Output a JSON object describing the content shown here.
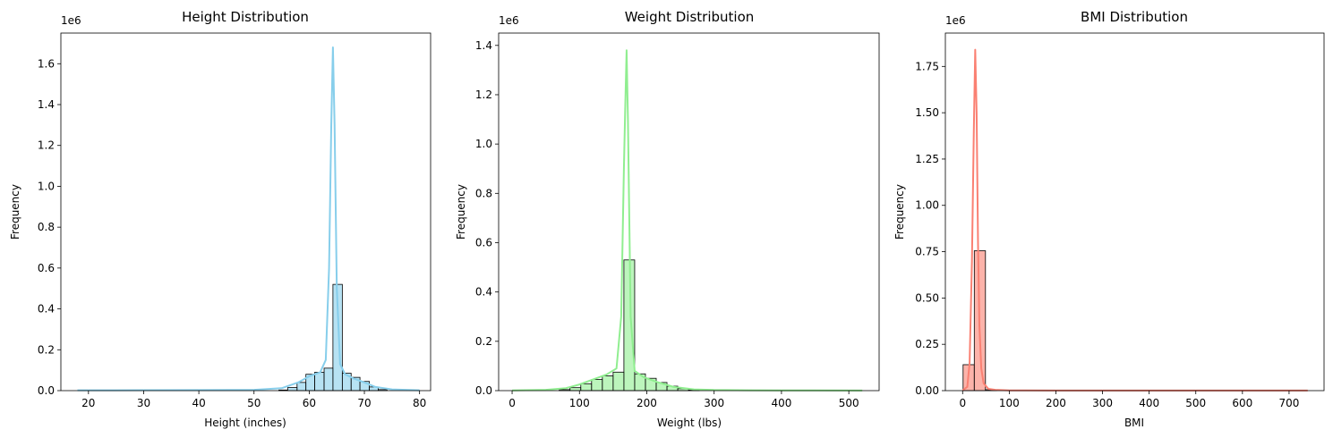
{
  "figure": {
    "background": "#ffffff"
  },
  "chart_data": [
    {
      "type": "histogram",
      "title": "Height Distribution",
      "xlabel": "Height (inches)",
      "ylabel": "Frequency",
      "y_offset_label": "1e6",
      "color": "#87ceeb",
      "xlim": [
        15,
        82
      ],
      "ylim": [
        0,
        1750000
      ],
      "xticks": [
        20,
        30,
        40,
        50,
        60,
        70,
        80
      ],
      "xtick_labels": [
        "20",
        "30",
        "40",
        "50",
        "60",
        "70",
        "80"
      ],
      "yticks": [
        0,
        200000,
        400000,
        600000,
        800000,
        1000000,
        1200000,
        1400000,
        1600000
      ],
      "ytick_labels": [
        "0.0",
        "0.2",
        "0.4",
        "0.6",
        "0.8",
        "1.0",
        "1.2",
        "1.4",
        "1.6"
      ],
      "bins": [
        {
          "x0": 54.5,
          "x1": 56.1,
          "value": 3000
        },
        {
          "x0": 56.1,
          "x1": 57.8,
          "value": 15000
        },
        {
          "x0": 57.8,
          "x1": 59.4,
          "value": 40000
        },
        {
          "x0": 59.4,
          "x1": 61.0,
          "value": 80000
        },
        {
          "x0": 61.0,
          "x1": 62.7,
          "value": 90000
        },
        {
          "x0": 62.7,
          "x1": 64.3,
          "value": 110000
        },
        {
          "x0": 64.3,
          "x1": 66.0,
          "value": 520000
        },
        {
          "x0": 66.0,
          "x1": 67.6,
          "value": 85000
        },
        {
          "x0": 67.6,
          "x1": 69.2,
          "value": 65000
        },
        {
          "x0": 69.2,
          "x1": 70.9,
          "value": 45000
        },
        {
          "x0": 70.9,
          "x1": 72.5,
          "value": 18000
        },
        {
          "x0": 72.5,
          "x1": 74.1,
          "value": 5000
        }
      ],
      "kde": {
        "x": [
          18,
          30,
          40,
          50,
          55,
          58,
          60,
          62,
          63,
          63.6,
          64.0,
          64.3,
          64.6,
          65.0,
          65.6,
          66.5,
          68,
          70,
          72,
          75,
          80
        ],
        "y": [
          1500,
          2000,
          2500,
          4000,
          12000,
          40000,
          70000,
          90000,
          150000,
          600000,
          1300000,
          1680000,
          1300000,
          500000,
          130000,
          80000,
          60000,
          40000,
          18000,
          6000,
          1500
        ]
      }
    },
    {
      "type": "histogram",
      "title": "Weight Distribution",
      "xlabel": "Weight (lbs)",
      "ylabel": "Frequency",
      "y_offset_label": "1e6",
      "color": "#90ee90",
      "xlim": [
        -20,
        545
      ],
      "ylim": [
        0,
        1450000
      ],
      "xticks": [
        0,
        100,
        200,
        300,
        400,
        500
      ],
      "xtick_labels": [
        "0",
        "100",
        "200",
        "300",
        "400",
        "500"
      ],
      "yticks": [
        0,
        200000,
        400000,
        600000,
        800000,
        1000000,
        1200000,
        1400000
      ],
      "ytick_labels": [
        "0.0",
        "0.2",
        "0.4",
        "0.6",
        "0.8",
        "1.0",
        "1.2",
        "1.4"
      ],
      "bins": [
        {
          "x0": 70,
          "x1": 86,
          "value": 4000
        },
        {
          "x0": 86,
          "x1": 102,
          "value": 12000
        },
        {
          "x0": 102,
          "x1": 118,
          "value": 28000
        },
        {
          "x0": 118,
          "x1": 134,
          "value": 45000
        },
        {
          "x0": 134,
          "x1": 150,
          "value": 60000
        },
        {
          "x0": 150,
          "x1": 166,
          "value": 75000
        },
        {
          "x0": 166,
          "x1": 182,
          "value": 530000
        },
        {
          "x0": 182,
          "x1": 198,
          "value": 68000
        },
        {
          "x0": 198,
          "x1": 214,
          "value": 50000
        },
        {
          "x0": 214,
          "x1": 230,
          "value": 33000
        },
        {
          "x0": 230,
          "x1": 246,
          "value": 18000
        },
        {
          "x0": 246,
          "x1": 262,
          "value": 8000
        },
        {
          "x0": 262,
          "x1": 278,
          "value": 3000
        }
      ],
      "kde": {
        "x": [
          0,
          50,
          80,
          100,
          120,
          140,
          155,
          162,
          166,
          168,
          170,
          172,
          176,
          182,
          195,
          215,
          240,
          270,
          300,
          350,
          400,
          450,
          520
        ],
        "y": [
          1000,
          3000,
          10000,
          25000,
          45000,
          65000,
          90000,
          300000,
          900000,
          1150000,
          1380000,
          1100000,
          300000,
          80000,
          55000,
          35000,
          15000,
          5000,
          2500,
          1500,
          1000,
          800,
          600
        ]
      }
    },
    {
      "type": "histogram",
      "title": "BMI Distribution",
      "xlabel": "BMI",
      "ylabel": "Frequency",
      "y_offset_label": "1e6",
      "color": "#fa8072",
      "xlim": [
        -37,
        775
      ],
      "ylim": [
        0,
        1930000
      ],
      "xticks": [
        0,
        100,
        200,
        300,
        400,
        500,
        600,
        700
      ],
      "xtick_labels": [
        "0",
        "100",
        "200",
        "300",
        "400",
        "500",
        "600",
        "700"
      ],
      "yticks": [
        0,
        250000,
        500000,
        750000,
        1000000,
        1250000,
        1500000,
        1750000
      ],
      "ytick_labels": [
        "0.00",
        "0.25",
        "0.50",
        "0.75",
        "1.00",
        "1.25",
        "1.50",
        "1.75"
      ],
      "bins": [
        {
          "x0": 1,
          "x1": 25,
          "value": 140000
        },
        {
          "x0": 25,
          "x1": 49,
          "value": 755000
        },
        {
          "x0": 49,
          "x1": 73,
          "value": 5000
        }
      ],
      "kde": {
        "x": [
          0,
          10,
          15,
          20,
          24,
          27,
          30,
          33,
          36,
          40,
          45,
          55,
          70,
          100,
          200,
          400,
          600,
          740
        ],
        "y": [
          2000,
          20000,
          150000,
          700000,
          1400000,
          1840000,
          1500000,
          800000,
          350000,
          120000,
          40000,
          10000,
          4000,
          1500,
          800,
          600,
          500,
          400
        ]
      }
    }
  ]
}
